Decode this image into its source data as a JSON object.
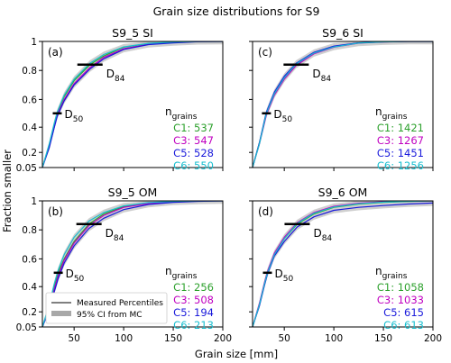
{
  "figure": {
    "title": "Grain size distributions for S9",
    "xlabel": "Grain size [mm]",
    "ylabel": "Fraction smaller"
  },
  "colors": {
    "C1": "#2ca02c",
    "C3": "#c000c0",
    "C5": "#1a1adb",
    "C6": "#17becf",
    "ci_band": "#a8a8a8",
    "marker": "#000000"
  },
  "legend": {
    "measured_label": "Measured Percentiles",
    "ci_label": "95% CI from MC",
    "position": "lower-left of panel (b)"
  },
  "chart_data": [
    {
      "type": "line",
      "title": "S9_5 SI",
      "panel_label": "(a)",
      "xlim": [
        18,
        200
      ],
      "ylim": [
        0.05,
        1.0
      ],
      "xticks": [
        50,
        100,
        150,
        200
      ],
      "yticks": [
        0.05,
        0.2,
        0.4,
        0.6,
        0.8,
        1.0
      ],
      "show_x_ticklabels": false,
      "show_y_ticklabels": true,
      "ngrains_label": "n",
      "ngrains_sub": "grains",
      "d50": {
        "x": 33,
        "y": 0.5,
        "label": "D",
        "sub": "50"
      },
      "d84": {
        "x": 66,
        "y": 0.84,
        "label": "D",
        "sub": "84"
      },
      "series": [
        {
          "key": "C1",
          "name": "C1",
          "count": 537,
          "x": [
            18,
            25,
            30,
            33,
            40,
            50,
            66,
            80,
            100,
            125,
            150,
            175,
            200
          ],
          "values": [
            0.05,
            0.26,
            0.42,
            0.5,
            0.62,
            0.73,
            0.84,
            0.9,
            0.96,
            0.985,
            0.995,
            1.0,
            1.0
          ]
        },
        {
          "key": "C3",
          "name": "C3",
          "count": 547,
          "x": [
            18,
            25,
            30,
            33,
            40,
            50,
            66,
            80,
            100,
            125,
            150,
            175,
            200
          ],
          "values": [
            0.05,
            0.25,
            0.4,
            0.49,
            0.6,
            0.71,
            0.82,
            0.89,
            0.95,
            0.98,
            0.993,
            1.0,
            1.0
          ]
        },
        {
          "key": "C5",
          "name": "C5",
          "count": 528,
          "x": [
            18,
            25,
            30,
            33,
            40,
            50,
            66,
            80,
            100,
            125,
            150,
            175,
            200
          ],
          "values": [
            0.05,
            0.24,
            0.4,
            0.48,
            0.59,
            0.7,
            0.81,
            0.88,
            0.945,
            0.978,
            0.99,
            0.998,
            1.0
          ]
        },
        {
          "key": "C6",
          "name": "C6",
          "count": 550,
          "x": [
            18,
            25,
            30,
            33,
            40,
            50,
            66,
            80,
            100,
            125,
            150,
            175,
            200
          ],
          "values": [
            0.05,
            0.27,
            0.43,
            0.51,
            0.63,
            0.74,
            0.85,
            0.91,
            0.962,
            0.987,
            0.996,
            1.0,
            1.0
          ]
        }
      ]
    },
    {
      "type": "line",
      "title": "S9_6 SI",
      "panel_label": "(c)",
      "xlim": [
        18,
        200
      ],
      "ylim": [
        0.05,
        1.0
      ],
      "xticks": [
        50,
        100,
        150,
        200
      ],
      "yticks": [
        0.05,
        0.2,
        0.4,
        0.6,
        0.8,
        1.0
      ],
      "show_x_ticklabels": false,
      "show_y_ticklabels": false,
      "ngrains_label": "n",
      "ngrains_sub": "grains",
      "d50": {
        "x": 32,
        "y": 0.5,
        "label": "D",
        "sub": "50"
      },
      "d84": {
        "x": 62,
        "y": 0.84,
        "label": "D",
        "sub": "84"
      },
      "series": [
        {
          "key": "C1",
          "name": "C1",
          "count": 1421,
          "x": [
            18,
            25,
            30,
            32,
            40,
            50,
            62,
            80,
            100,
            125,
            150,
            175,
            200
          ],
          "values": [
            0.05,
            0.28,
            0.44,
            0.5,
            0.64,
            0.75,
            0.84,
            0.92,
            0.965,
            0.99,
            0.997,
            1.0,
            1.0
          ]
        },
        {
          "key": "C3",
          "name": "C3",
          "count": 1267,
          "x": [
            18,
            25,
            30,
            32,
            40,
            50,
            62,
            80,
            100,
            125,
            150,
            175,
            200
          ],
          "values": [
            0.05,
            0.27,
            0.43,
            0.49,
            0.63,
            0.74,
            0.835,
            0.915,
            0.96,
            0.988,
            0.996,
            1.0,
            1.0
          ]
        },
        {
          "key": "C5",
          "name": "C5",
          "count": 1451,
          "x": [
            18,
            25,
            30,
            32,
            40,
            50,
            62,
            80,
            100,
            125,
            150,
            175,
            200
          ],
          "values": [
            0.05,
            0.28,
            0.45,
            0.51,
            0.65,
            0.76,
            0.85,
            0.925,
            0.968,
            0.99,
            0.998,
            1.0,
            1.0
          ]
        },
        {
          "key": "C6",
          "name": "C6",
          "count": 1256,
          "x": [
            18,
            25,
            30,
            32,
            40,
            50,
            62,
            80,
            100,
            125,
            150,
            175,
            200
          ],
          "values": [
            0.05,
            0.27,
            0.44,
            0.5,
            0.64,
            0.75,
            0.845,
            0.92,
            0.962,
            0.989,
            0.997,
            1.0,
            1.0
          ]
        }
      ]
    },
    {
      "type": "line",
      "title": "S9_5 OM",
      "panel_label": "(b)",
      "xlim": [
        18,
        200
      ],
      "ylim": [
        0.05,
        1.0
      ],
      "xticks": [
        50,
        100,
        150,
        200
      ],
      "yticks": [
        0.05,
        0.2,
        0.4,
        0.6,
        0.8,
        1.0
      ],
      "show_x_ticklabels": true,
      "show_y_ticklabels": true,
      "ngrains_label": "n",
      "ngrains_sub": "grains",
      "d50": {
        "x": 34,
        "y": 0.5,
        "label": "D",
        "sub": "50"
      },
      "d84": {
        "x": 65,
        "y": 0.84,
        "label": "D",
        "sub": "84"
      },
      "series": [
        {
          "key": "C1",
          "name": "C1",
          "count": 256,
          "x": [
            18,
            25,
            30,
            34,
            40,
            50,
            65,
            80,
            100,
            125,
            150,
            175,
            200
          ],
          "values": [
            0.05,
            0.24,
            0.4,
            0.5,
            0.6,
            0.72,
            0.84,
            0.91,
            0.96,
            0.985,
            0.995,
            1.0,
            1.0
          ]
        },
        {
          "key": "C3",
          "name": "C3",
          "count": 508,
          "x": [
            18,
            25,
            30,
            34,
            40,
            50,
            65,
            80,
            100,
            125,
            150,
            175,
            200
          ],
          "values": [
            0.05,
            0.23,
            0.38,
            0.48,
            0.59,
            0.71,
            0.83,
            0.9,
            0.955,
            0.982,
            0.994,
            1.0,
            1.0
          ]
        },
        {
          "key": "C5",
          "name": "C5",
          "count": 194,
          "x": [
            18,
            25,
            30,
            34,
            40,
            50,
            65,
            80,
            100,
            125,
            150,
            175,
            200
          ],
          "values": [
            0.05,
            0.22,
            0.36,
            0.46,
            0.57,
            0.69,
            0.81,
            0.88,
            0.94,
            0.975,
            0.99,
            0.997,
            1.0
          ]
        },
        {
          "key": "C6",
          "name": "C6",
          "count": 213,
          "x": [
            18,
            25,
            30,
            34,
            40,
            50,
            65,
            80,
            100,
            125,
            150,
            175,
            200
          ],
          "values": [
            0.05,
            0.26,
            0.42,
            0.52,
            0.63,
            0.75,
            0.86,
            0.92,
            0.965,
            0.988,
            0.997,
            1.0,
            1.0
          ]
        }
      ]
    },
    {
      "type": "line",
      "title": "S9_6 OM",
      "panel_label": "(d)",
      "xlim": [
        18,
        200
      ],
      "ylim": [
        0.05,
        1.0
      ],
      "xticks": [
        50,
        100,
        150,
        200
      ],
      "yticks": [
        0.05,
        0.2,
        0.4,
        0.6,
        0.8,
        1.0
      ],
      "show_x_ticklabels": true,
      "show_y_ticklabels": false,
      "ngrains_label": "n",
      "ngrains_sub": "grains",
      "d50": {
        "x": 33,
        "y": 0.5,
        "label": "D",
        "sub": "50"
      },
      "d84": {
        "x": 63,
        "y": 0.84,
        "label": "D",
        "sub": "84"
      },
      "series": [
        {
          "key": "C1",
          "name": "C1",
          "count": 1058,
          "x": [
            18,
            25,
            30,
            33,
            40,
            50,
            63,
            80,
            100,
            125,
            150,
            175,
            200
          ],
          "values": [
            0.05,
            0.26,
            0.42,
            0.5,
            0.63,
            0.74,
            0.84,
            0.91,
            0.955,
            0.978,
            0.99,
            0.996,
            1.0
          ]
        },
        {
          "key": "C3",
          "name": "C3",
          "count": 1033,
          "x": [
            18,
            25,
            30,
            33,
            40,
            50,
            63,
            80,
            100,
            125,
            150,
            175,
            200
          ],
          "values": [
            0.05,
            0.27,
            0.43,
            0.51,
            0.64,
            0.75,
            0.85,
            0.92,
            0.962,
            0.984,
            0.994,
            0.998,
            1.0
          ]
        },
        {
          "key": "C5",
          "name": "C5",
          "count": 615,
          "x": [
            18,
            25,
            30,
            33,
            40,
            50,
            63,
            80,
            100,
            125,
            150,
            175,
            200
          ],
          "values": [
            0.05,
            0.25,
            0.41,
            0.49,
            0.62,
            0.72,
            0.82,
            0.89,
            0.935,
            0.955,
            0.968,
            0.978,
            0.985
          ]
        },
        {
          "key": "C6",
          "name": "C6",
          "count": 613,
          "x": [
            18,
            25,
            30,
            33,
            40,
            50,
            63,
            80,
            100,
            125,
            150,
            175,
            200
          ],
          "values": [
            0.05,
            0.26,
            0.42,
            0.5,
            0.63,
            0.74,
            0.845,
            0.915,
            0.958,
            0.98,
            0.991,
            0.997,
            1.0
          ]
        }
      ]
    }
  ]
}
